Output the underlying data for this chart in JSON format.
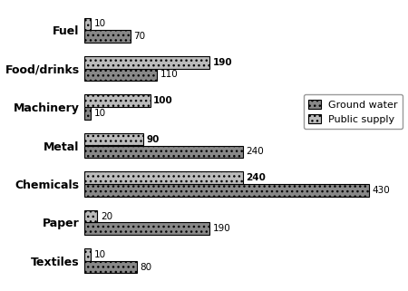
{
  "categories": [
    "Fuel",
    "Food/drinks",
    "Machinery",
    "Metal",
    "Chemicals",
    "Paper",
    "Textiles"
  ],
  "ground_water": [
    70,
    110,
    10,
    240,
    430,
    190,
    80
  ],
  "public_supply": [
    10,
    190,
    100,
    90,
    240,
    20,
    10
  ],
  "ground_water_color": "#888888",
  "public_supply_color": "#bbbbbb",
  "bar_height": 0.32,
  "xlim": [
    0,
    480
  ],
  "legend_labels": [
    "Ground water",
    "Public supply"
  ],
  "value_fontsize": 7.5,
  "label_fontsize": 9,
  "background_color": "#ffffff",
  "edge_color": "#000000",
  "bold_threshold": 90
}
